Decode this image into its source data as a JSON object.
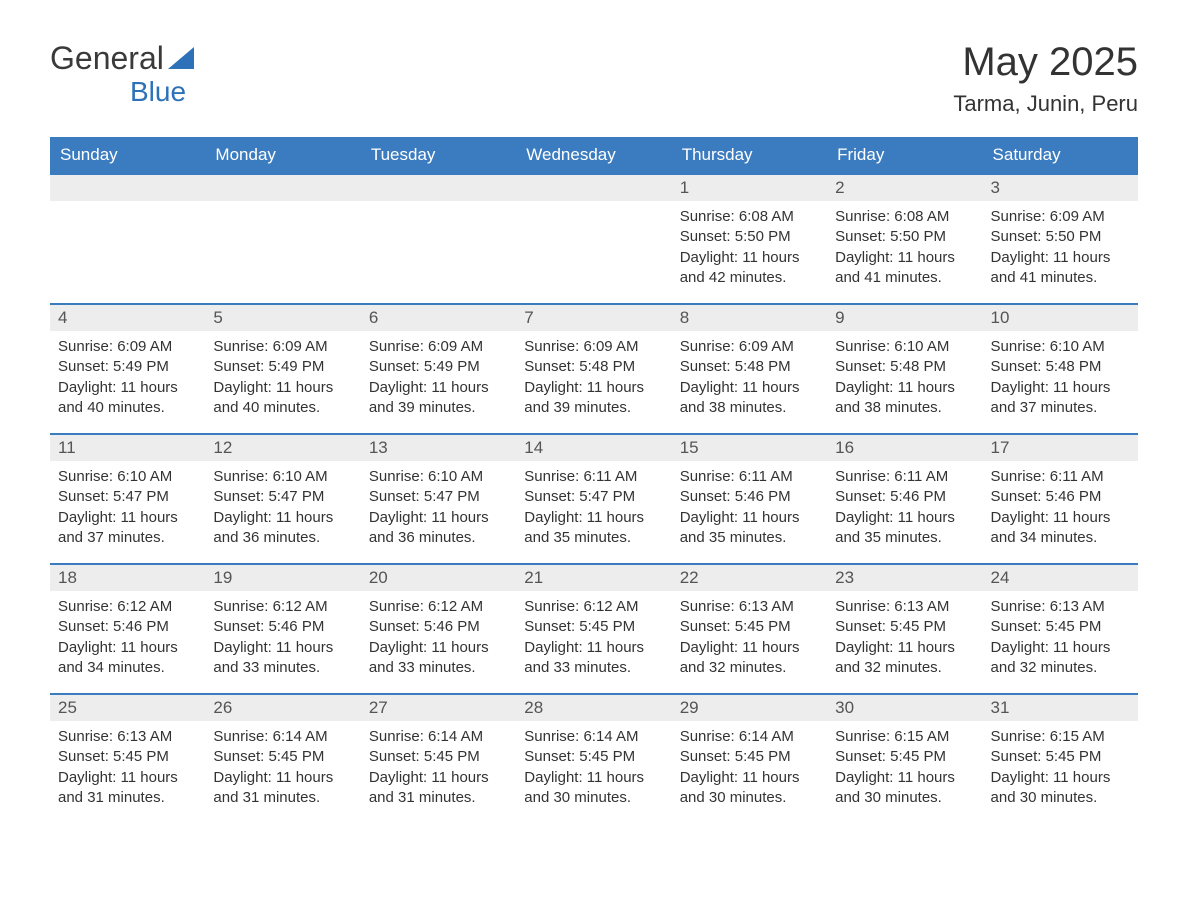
{
  "logo": {
    "text_part1": "General",
    "text_part2": "Blue",
    "color_gray": "#3a3a3a",
    "color_blue": "#2d72b8"
  },
  "header": {
    "month_title": "May 2025",
    "location": "Tarma, Junin, Peru"
  },
  "colors": {
    "header_bg": "#3b7bbf",
    "header_text": "#ffffff",
    "day_number_bg": "#ededed",
    "body_text": "#333333",
    "row_border": "#3b7bbf",
    "background": "#ffffff"
  },
  "typography": {
    "title_fontsize": 40,
    "location_fontsize": 22,
    "weekday_fontsize": 17,
    "daynum_fontsize": 17,
    "body_fontsize": 15
  },
  "calendar": {
    "weekdays": [
      "Sunday",
      "Monday",
      "Tuesday",
      "Wednesday",
      "Thursday",
      "Friday",
      "Saturday"
    ],
    "weeks": [
      [
        null,
        null,
        null,
        null,
        {
          "n": "1",
          "sunrise": "Sunrise: 6:08 AM",
          "sunset": "Sunset: 5:50 PM",
          "dl1": "Daylight: 11 hours",
          "dl2": "and 42 minutes."
        },
        {
          "n": "2",
          "sunrise": "Sunrise: 6:08 AM",
          "sunset": "Sunset: 5:50 PM",
          "dl1": "Daylight: 11 hours",
          "dl2": "and 41 minutes."
        },
        {
          "n": "3",
          "sunrise": "Sunrise: 6:09 AM",
          "sunset": "Sunset: 5:50 PM",
          "dl1": "Daylight: 11 hours",
          "dl2": "and 41 minutes."
        }
      ],
      [
        {
          "n": "4",
          "sunrise": "Sunrise: 6:09 AM",
          "sunset": "Sunset: 5:49 PM",
          "dl1": "Daylight: 11 hours",
          "dl2": "and 40 minutes."
        },
        {
          "n": "5",
          "sunrise": "Sunrise: 6:09 AM",
          "sunset": "Sunset: 5:49 PM",
          "dl1": "Daylight: 11 hours",
          "dl2": "and 40 minutes."
        },
        {
          "n": "6",
          "sunrise": "Sunrise: 6:09 AM",
          "sunset": "Sunset: 5:49 PM",
          "dl1": "Daylight: 11 hours",
          "dl2": "and 39 minutes."
        },
        {
          "n": "7",
          "sunrise": "Sunrise: 6:09 AM",
          "sunset": "Sunset: 5:48 PM",
          "dl1": "Daylight: 11 hours",
          "dl2": "and 39 minutes."
        },
        {
          "n": "8",
          "sunrise": "Sunrise: 6:09 AM",
          "sunset": "Sunset: 5:48 PM",
          "dl1": "Daylight: 11 hours",
          "dl2": "and 38 minutes."
        },
        {
          "n": "9",
          "sunrise": "Sunrise: 6:10 AM",
          "sunset": "Sunset: 5:48 PM",
          "dl1": "Daylight: 11 hours",
          "dl2": "and 38 minutes."
        },
        {
          "n": "10",
          "sunrise": "Sunrise: 6:10 AM",
          "sunset": "Sunset: 5:48 PM",
          "dl1": "Daylight: 11 hours",
          "dl2": "and 37 minutes."
        }
      ],
      [
        {
          "n": "11",
          "sunrise": "Sunrise: 6:10 AM",
          "sunset": "Sunset: 5:47 PM",
          "dl1": "Daylight: 11 hours",
          "dl2": "and 37 minutes."
        },
        {
          "n": "12",
          "sunrise": "Sunrise: 6:10 AM",
          "sunset": "Sunset: 5:47 PM",
          "dl1": "Daylight: 11 hours",
          "dl2": "and 36 minutes."
        },
        {
          "n": "13",
          "sunrise": "Sunrise: 6:10 AM",
          "sunset": "Sunset: 5:47 PM",
          "dl1": "Daylight: 11 hours",
          "dl2": "and 36 minutes."
        },
        {
          "n": "14",
          "sunrise": "Sunrise: 6:11 AM",
          "sunset": "Sunset: 5:47 PM",
          "dl1": "Daylight: 11 hours",
          "dl2": "and 35 minutes."
        },
        {
          "n": "15",
          "sunrise": "Sunrise: 6:11 AM",
          "sunset": "Sunset: 5:46 PM",
          "dl1": "Daylight: 11 hours",
          "dl2": "and 35 minutes."
        },
        {
          "n": "16",
          "sunrise": "Sunrise: 6:11 AM",
          "sunset": "Sunset: 5:46 PM",
          "dl1": "Daylight: 11 hours",
          "dl2": "and 35 minutes."
        },
        {
          "n": "17",
          "sunrise": "Sunrise: 6:11 AM",
          "sunset": "Sunset: 5:46 PM",
          "dl1": "Daylight: 11 hours",
          "dl2": "and 34 minutes."
        }
      ],
      [
        {
          "n": "18",
          "sunrise": "Sunrise: 6:12 AM",
          "sunset": "Sunset: 5:46 PM",
          "dl1": "Daylight: 11 hours",
          "dl2": "and 34 minutes."
        },
        {
          "n": "19",
          "sunrise": "Sunrise: 6:12 AM",
          "sunset": "Sunset: 5:46 PM",
          "dl1": "Daylight: 11 hours",
          "dl2": "and 33 minutes."
        },
        {
          "n": "20",
          "sunrise": "Sunrise: 6:12 AM",
          "sunset": "Sunset: 5:46 PM",
          "dl1": "Daylight: 11 hours",
          "dl2": "and 33 minutes."
        },
        {
          "n": "21",
          "sunrise": "Sunrise: 6:12 AM",
          "sunset": "Sunset: 5:45 PM",
          "dl1": "Daylight: 11 hours",
          "dl2": "and 33 minutes."
        },
        {
          "n": "22",
          "sunrise": "Sunrise: 6:13 AM",
          "sunset": "Sunset: 5:45 PM",
          "dl1": "Daylight: 11 hours",
          "dl2": "and 32 minutes."
        },
        {
          "n": "23",
          "sunrise": "Sunrise: 6:13 AM",
          "sunset": "Sunset: 5:45 PM",
          "dl1": "Daylight: 11 hours",
          "dl2": "and 32 minutes."
        },
        {
          "n": "24",
          "sunrise": "Sunrise: 6:13 AM",
          "sunset": "Sunset: 5:45 PM",
          "dl1": "Daylight: 11 hours",
          "dl2": "and 32 minutes."
        }
      ],
      [
        {
          "n": "25",
          "sunrise": "Sunrise: 6:13 AM",
          "sunset": "Sunset: 5:45 PM",
          "dl1": "Daylight: 11 hours",
          "dl2": "and 31 minutes."
        },
        {
          "n": "26",
          "sunrise": "Sunrise: 6:14 AM",
          "sunset": "Sunset: 5:45 PM",
          "dl1": "Daylight: 11 hours",
          "dl2": "and 31 minutes."
        },
        {
          "n": "27",
          "sunrise": "Sunrise: 6:14 AM",
          "sunset": "Sunset: 5:45 PM",
          "dl1": "Daylight: 11 hours",
          "dl2": "and 31 minutes."
        },
        {
          "n": "28",
          "sunrise": "Sunrise: 6:14 AM",
          "sunset": "Sunset: 5:45 PM",
          "dl1": "Daylight: 11 hours",
          "dl2": "and 30 minutes."
        },
        {
          "n": "29",
          "sunrise": "Sunrise: 6:14 AM",
          "sunset": "Sunset: 5:45 PM",
          "dl1": "Daylight: 11 hours",
          "dl2": "and 30 minutes."
        },
        {
          "n": "30",
          "sunrise": "Sunrise: 6:15 AM",
          "sunset": "Sunset: 5:45 PM",
          "dl1": "Daylight: 11 hours",
          "dl2": "and 30 minutes."
        },
        {
          "n": "31",
          "sunrise": "Sunrise: 6:15 AM",
          "sunset": "Sunset: 5:45 PM",
          "dl1": "Daylight: 11 hours",
          "dl2": "and 30 minutes."
        }
      ]
    ]
  }
}
